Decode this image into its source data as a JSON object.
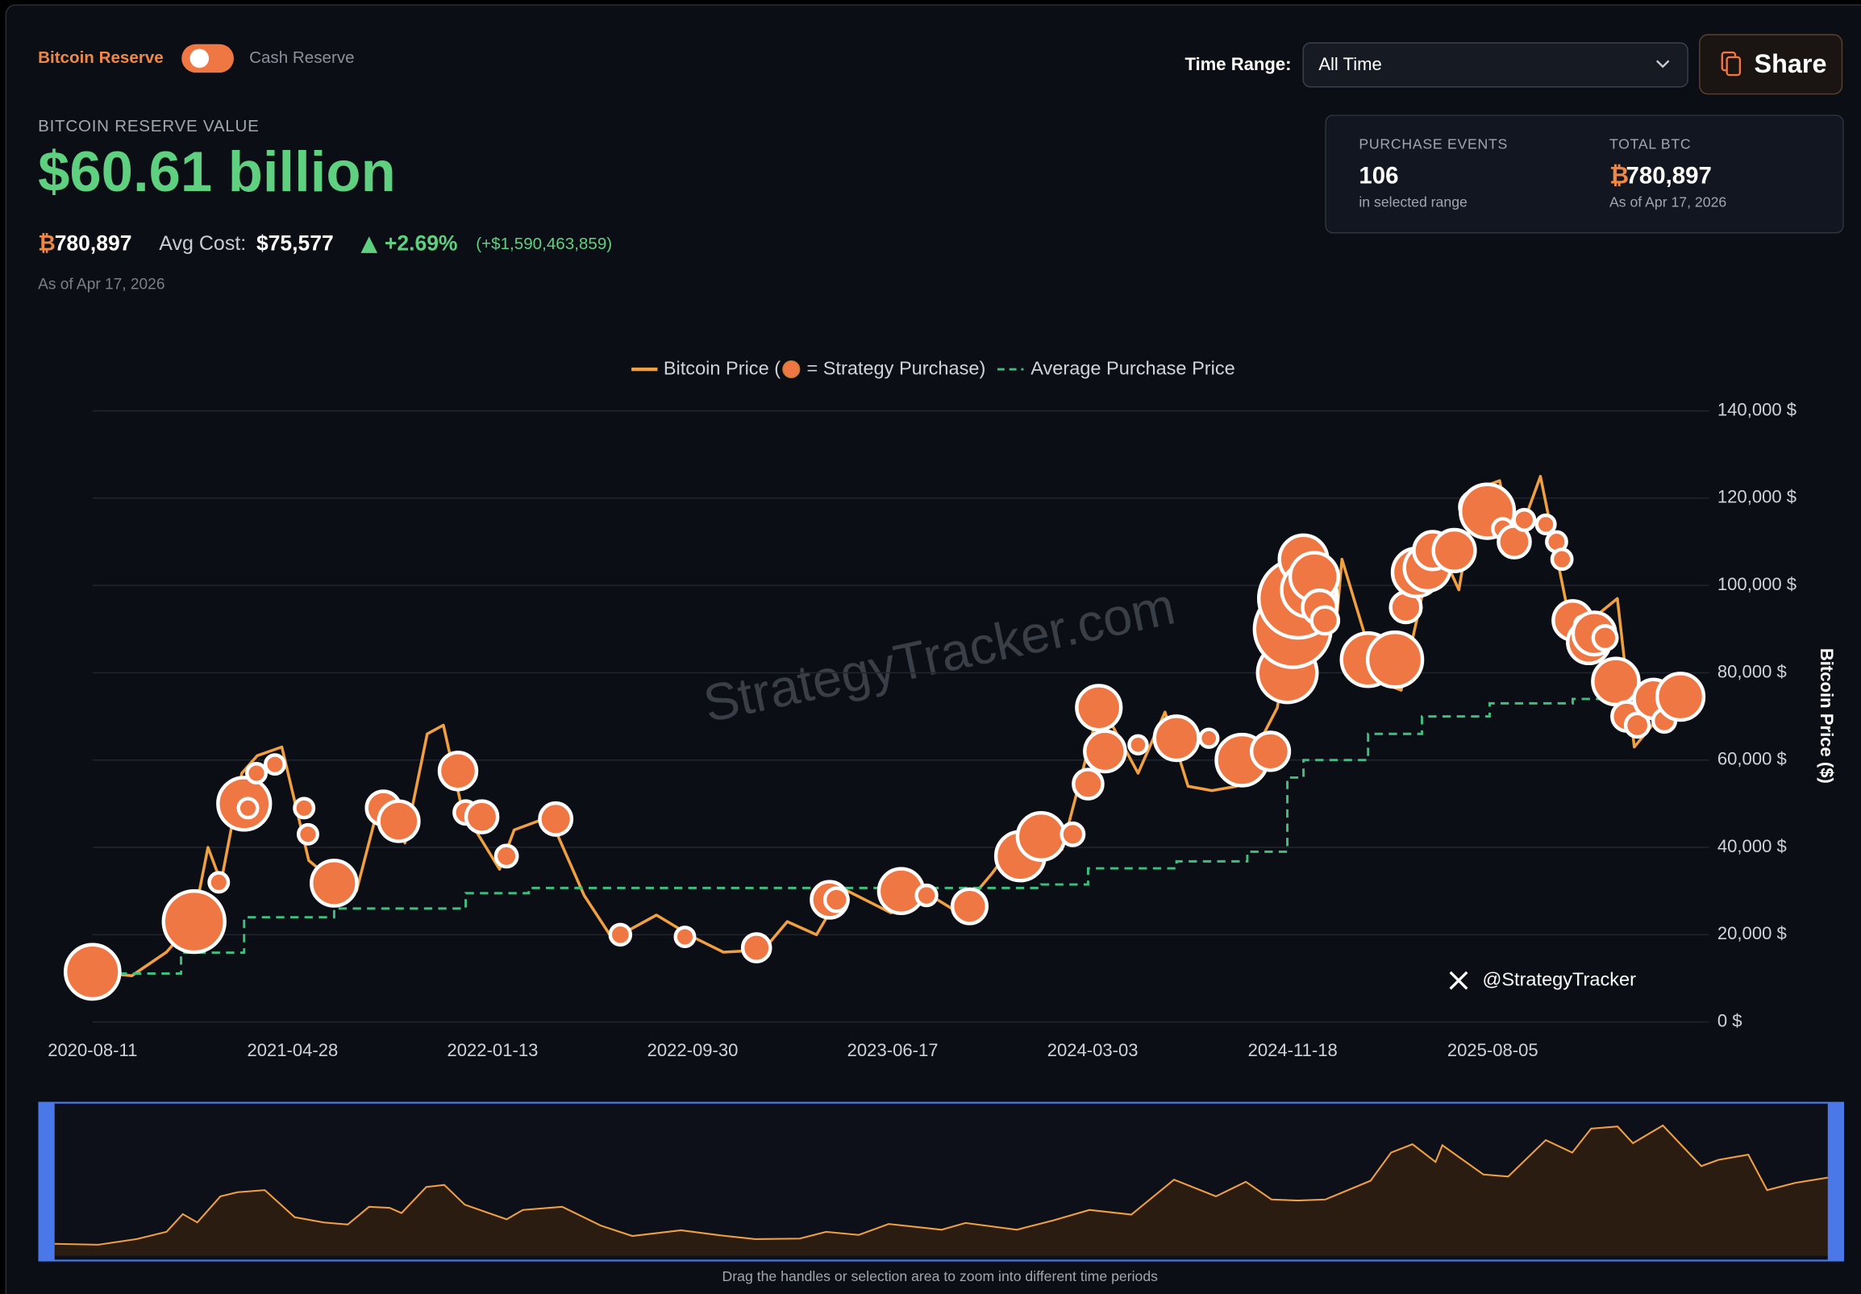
{
  "toggle": {
    "left": "Bitcoin Reserve",
    "right": "Cash Reserve"
  },
  "header": {
    "label": "BITCOIN RESERVE VALUE",
    "value": "$60.61 billion",
    "btc_symbol": "₿",
    "btc": "780,897",
    "avg_label": "Avg Cost:",
    "avg_value": "$75,577",
    "change": "+2.69%",
    "change_abs": "(+$1,590,463,859)",
    "as_of": "As of Apr 17, 2026"
  },
  "controls": {
    "range_label": "Time Range:",
    "range_value": "All Time",
    "share": "Share"
  },
  "stats": {
    "events_label": "PURCHASE EVENTS",
    "events_value": "106",
    "events_sub": "in selected range",
    "btc_label": "TOTAL BTC",
    "btc_symbol": "₿",
    "btc_value": "780,897",
    "btc_sub": "As of Apr 17, 2026"
  },
  "watermark": "StrategyTracker.com",
  "handle": "@StrategyTracker",
  "footer": "Drag the handles or selection area to zoom into different time periods",
  "chart_data": {
    "type": "line",
    "y_axis_label": "Bitcoin Price ($)",
    "xlim": [
      "2020-08-11",
      "2026-04-17"
    ],
    "xticks": [
      "2020-08-11",
      "2021-04-28",
      "2022-01-13",
      "2022-09-30",
      "2023-06-17",
      "2024-03-03",
      "2024-11-18",
      "2025-08-05"
    ],
    "ylim": [
      0,
      140000
    ],
    "yticks": [
      {
        "value": 0,
        "label": "0 $"
      },
      {
        "value": 20000,
        "label": "20,000 $"
      },
      {
        "value": 40000,
        "label": "40,000 $"
      },
      {
        "value": 60000,
        "label": "60,000 $"
      },
      {
        "value": 80000,
        "label": "80,000 $"
      },
      {
        "value": 100000,
        "label": "100,000 $"
      },
      {
        "value": 120000,
        "label": "120,000 $"
      },
      {
        "value": 140000,
        "label": "140,000 $"
      }
    ],
    "grid": true,
    "series": [
      {
        "name": "Bitcoin Price (",
        "color": "#f0a040",
        "kind": "line",
        "x": [
          "2020-08-11",
          "2020-10-01",
          "2020-11-15",
          "2020-12-20",
          "2021-01-08",
          "2021-01-25",
          "2021-02-21",
          "2021-03-13",
          "2021-04-14",
          "2021-05-19",
          "2021-06-22",
          "2021-07-20",
          "2021-08-14",
          "2021-09-07",
          "2021-09-21",
          "2021-10-20",
          "2021-11-10",
          "2021-12-04",
          "2022-01-22",
          "2022-02-10",
          "2022-03-28",
          "2022-05-12",
          "2022-06-18",
          "2022-08-14",
          "2022-09-30",
          "2022-11-09",
          "2022-12-31",
          "2023-01-31",
          "2023-03-10",
          "2023-04-14",
          "2023-06-15",
          "2023-07-13",
          "2023-09-11",
          "2023-10-24",
          "2023-12-05",
          "2024-01-23",
          "2024-03-13",
          "2024-05-01",
          "2024-06-05",
          "2024-07-05",
          "2024-08-05",
          "2024-09-06",
          "2024-10-29",
          "2024-11-22",
          "2024-12-17",
          "2025-01-13",
          "2025-01-21",
          "2025-03-10",
          "2025-04-08",
          "2025-05-22",
          "2025-06-22",
          "2025-07-14",
          "2025-08-14",
          "2025-09-01",
          "2025-10-06",
          "2025-11-20",
          "2025-12-10",
          "2026-01-14",
          "2026-02-05",
          "2026-03-10",
          "2026-04-17"
        ],
        "values": [
          11500,
          10600,
          16000,
          23000,
          40000,
          32000,
          57000,
          61000,
          63000,
          37000,
          32000,
          30000,
          47000,
          46000,
          41000,
          66000,
          68000,
          49000,
          35000,
          44000,
          47000,
          29000,
          19000,
          24500,
          19500,
          16000,
          16500,
          23000,
          20000,
          30500,
          25000,
          31500,
          25000,
          34000,
          44000,
          39500,
          73000,
          57000,
          71000,
          54000,
          53000,
          54000,
          72000,
          99000,
          107000,
          90000,
          106000,
          78000,
          76000,
          111000,
          99000,
          122000,
          124000,
          108000,
          125000,
          86000,
          92000,
          97000,
          63000,
          70000,
          75000
        ]
      },
      {
        "name": "Average Purchase Price",
        "color": "#3fbf7f",
        "kind": "step",
        "dashed": true,
        "x": [
          "2020-09-14",
          "2020-12-04",
          "2021-02-24",
          "2021-06-21",
          "2021-12-09",
          "2022-03-01",
          "2023-12-27",
          "2024-02-26",
          "2024-06-20",
          "2024-09-20",
          "2024-11-11",
          "2024-12-02",
          "2025-02-24",
          "2025-05-05",
          "2025-08-01",
          "2025-11-17",
          "2026-04-13"
        ],
        "values": [
          11100,
          15900,
          24000,
          26000,
          29500,
          30700,
          31500,
          35200,
          36800,
          39000,
          56000,
          60000,
          66000,
          70000,
          73000,
          74000,
          76000
        ]
      },
      {
        "name": "= Strategy Purchase)",
        "color": "#ee7744",
        "kind": "bubble",
        "x": [
          "2020-08-11",
          "2020-12-21",
          "2021-01-22",
          "2021-02-24",
          "2021-03-01",
          "2021-03-12",
          "2021-04-05",
          "2021-05-13",
          "2021-05-18",
          "2021-06-21",
          "2021-08-24",
          "2021-09-13",
          "2021-11-29",
          "2021-12-09",
          "2021-12-30",
          "2022-01-31",
          "2022-04-05",
          "2022-06-28",
          "2022-09-20",
          "2022-12-22",
          "2023-03-27",
          "2023-04-05",
          "2023-06-28",
          "2023-07-31",
          "2023-09-25",
          "2023-11-30",
          "2023-12-27",
          "2024-02-06",
          "2024-02-26",
          "2024-03-11",
          "2024-03-19",
          "2024-05-01",
          "2024-06-20",
          "2024-08-01",
          "2024-09-13",
          "2024-10-20",
          "2024-11-11",
          "2024-11-18",
          "2024-11-25",
          "2024-12-02",
          "2024-12-09",
          "2024-12-16",
          "2024-12-23",
          "2024-12-30",
          "2025-02-24",
          "2025-03-17",
          "2025-03-31",
          "2025-04-14",
          "2025-04-28",
          "2025-05-12",
          "2025-05-19",
          "2025-06-16",
          "2025-07-14",
          "2025-07-29",
          "2025-08-18",
          "2025-09-02",
          "2025-09-15",
          "2025-10-13",
          "2025-10-27",
          "2025-11-03",
          "2025-11-17",
          "2025-12-01",
          "2025-12-08",
          "2025-12-15",
          "2025-12-29",
          "2026-01-12",
          "2026-01-26",
          "2026-02-09",
          "2026-03-02",
          "2026-03-16",
          "2026-04-06"
        ],
        "values": [
          11500,
          23000,
          32000,
          50000,
          49000,
          57000,
          59000,
          49000,
          43000,
          31800,
          49000,
          46000,
          57500,
          48000,
          47000,
          38000,
          46500,
          20000,
          19500,
          17000,
          28000,
          28000,
          30000,
          29000,
          26500,
          38000,
          42500,
          43000,
          54500,
          72000,
          62000,
          63500,
          65000,
          65000,
          60000,
          62000,
          80000,
          90000,
          97000,
          106000,
          99000,
          102000,
          95000,
          92000,
          83000,
          85000,
          83000,
          95000,
          103000,
          104000,
          108000,
          108000,
          118000,
          117000,
          113000,
          110000,
          115000,
          114000,
          110000,
          106000,
          92000,
          91000,
          87000,
          89000,
          88000,
          78000,
          70000,
          68000,
          74000,
          69000,
          74500
        ],
        "sizes": [
          21454,
          29646,
          300,
          19452,
          300,
          300,
          300,
          300,
          300,
          13005,
          5000,
          8957,
          7002,
          1000,
          4000,
          660,
          4167,
          480,
          300,
          2395,
          6455,
          1045,
          12333,
          467,
          5445,
          16130,
          14620,
          850,
          3000,
          12000,
          9245,
          164,
          11931,
          169,
          18300,
          7420,
          27200,
          51780,
          55500,
          15400,
          21550,
          15350,
          5262,
          2138,
          20356,
          130,
          22048,
          3459,
          15355,
          13390,
          7390,
          10100,
          4225,
          21021,
          430,
          4048,
          525,
          220,
          390,
          397,
          8178,
          130,
          10624,
          10645,
          1229,
          13627,
          2932,
          1142,
          8178,
          900,
          14000
        ]
      }
    ]
  }
}
